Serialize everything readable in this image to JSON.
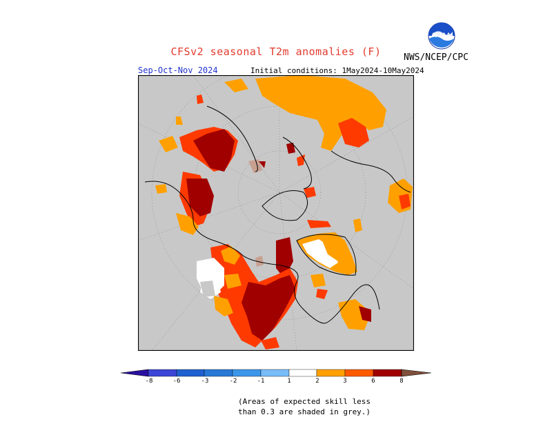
{
  "header": {
    "title": "CFSv2 seasonal T2m anomalies (F)",
    "agency": "NWS/NCEP/CPC",
    "season": "Sep-Oct-Nov 2024",
    "initial_conditions": "Initial conditions: 1May2024-10May2024",
    "logo_text": "NOAA"
  },
  "legend": {
    "ticks": [
      "-8",
      "-6",
      "-3",
      "-2",
      "-1",
      "1",
      "2",
      "3",
      "6",
      "8"
    ],
    "colors": [
      "#2a10a0",
      "#3b46d6",
      "#2878d6",
      "#3c96ea",
      "#78bcf8",
      "#ffffff",
      "#ffa000",
      "#ff5a00",
      "#ff2a00",
      "#a00000",
      "#c8a090",
      "#80503c"
    ]
  },
  "note": {
    "line1": "(Areas of expected skill less",
    "line2": "than 0.3 are shaded in grey.)"
  },
  "colors": {
    "grey": "#c8c8c8",
    "orange": "#ffa000",
    "red_orange": "#ff3a00",
    "dark_red": "#a00000",
    "tan": "#c8a090"
  }
}
